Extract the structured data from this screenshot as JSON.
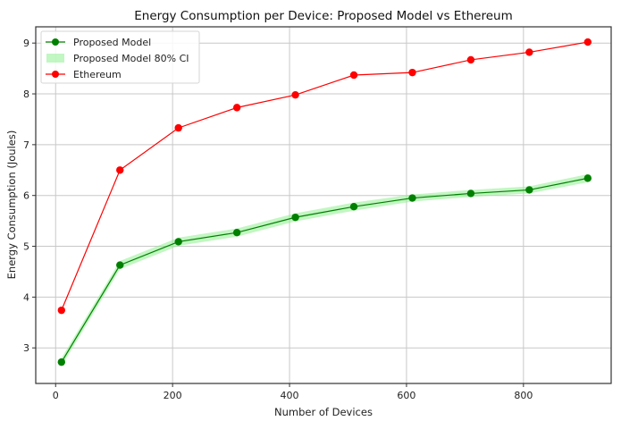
{
  "chart_data": {
    "type": "line",
    "title": "Energy Consumption per Device: Proposed Model vs Ethereum",
    "xlabel": "Number of Devices",
    "ylabel": "Energy Consumption (Joules)",
    "xlim": [
      -34,
      950
    ],
    "ylim": [
      2.3,
      9.32
    ],
    "xticks": [
      0,
      200,
      400,
      600,
      800
    ],
    "xtick_labels": [
      "0",
      "200",
      "400",
      "600",
      "800"
    ],
    "yticks": [
      3,
      4,
      5,
      6,
      7,
      8,
      9
    ],
    "ytick_labels": [
      "3",
      "4",
      "5",
      "6",
      "7",
      "8",
      "9"
    ],
    "grid": true,
    "legend_position": "top-left",
    "x": [
      10,
      110,
      210,
      310,
      410,
      510,
      610,
      710,
      810,
      910
    ],
    "series": [
      {
        "name": "Proposed Model",
        "color": "#008000",
        "marker": "circle",
        "values": [
          2.72,
          4.63,
          5.09,
          5.27,
          5.57,
          5.78,
          5.95,
          6.04,
          6.11,
          6.34
        ]
      },
      {
        "name": "Ethereum",
        "color": "#ff0000",
        "marker": "circle",
        "values": [
          3.74,
          6.5,
          7.33,
          7.73,
          7.98,
          8.37,
          8.42,
          8.67,
          8.82,
          9.02
        ]
      }
    ],
    "bands": [
      {
        "name": "Proposed Model 80% CI",
        "color": "#90ee90",
        "lower": [
          2.64,
          4.55,
          5.01,
          5.19,
          5.49,
          5.7,
          5.88,
          5.97,
          6.04,
          6.26
        ],
        "upper": [
          2.8,
          4.71,
          5.17,
          5.35,
          5.65,
          5.86,
          6.02,
          6.11,
          6.18,
          6.42
        ]
      }
    ],
    "legend": [
      {
        "label": "Proposed Model",
        "kind": "line-marker",
        "color": "#008000"
      },
      {
        "label": "Proposed Model 80% CI",
        "kind": "patch",
        "color": "#90ee90"
      },
      {
        "label": "Ethereum",
        "kind": "line-marker",
        "color": "#ff0000"
      }
    ]
  }
}
